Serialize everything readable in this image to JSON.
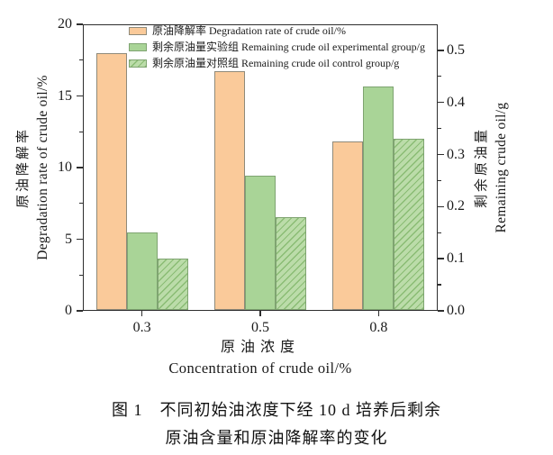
{
  "figure": {
    "caption": {
      "line1": "图 1　不同初始油浓度下经 10 d 培养后剩余",
      "line2": "原油含量和原油降解率的变化"
    }
  },
  "chart_data": {
    "type": "bar",
    "categories": [
      "0.3",
      "0.5",
      "0.8"
    ],
    "series": [
      {
        "key": "degradation-rate",
        "name": "原油降解率 Degradation rate of crude oil/%",
        "axis": "left",
        "style": "orange",
        "values": [
          18.0,
          16.7,
          11.8
        ]
      },
      {
        "key": "remaining-experimental",
        "name": "剩余原油量实验组 Remaining crude oil experimental group/g",
        "axis": "right",
        "style": "green",
        "values": [
          0.15,
          0.26,
          0.43
        ]
      },
      {
        "key": "remaining-control",
        "name": "剩余原油量对照组 Remaining crude oil control group/g",
        "axis": "right",
        "style": "hatch",
        "values": [
          0.1,
          0.18,
          0.33
        ]
      }
    ],
    "x_axis": {
      "label_zh": "原油浓度",
      "label_en": "Concentration of crude oil/%",
      "tick_labels": [
        "0.3",
        "0.5",
        "0.8"
      ]
    },
    "left_axis": {
      "label_zh": "原油降解率",
      "label_en": "Degradation rate of crude oil/%",
      "min": 0,
      "max": 20,
      "major_ticks": [
        0,
        5,
        10,
        15,
        20
      ],
      "minor_step": 2.5
    },
    "right_axis": {
      "label_zh": "剩余原油量",
      "label_en": "Remaining crude oil/g",
      "min": 0,
      "max": 0.55,
      "major_ticks": [
        0.0,
        0.1,
        0.2,
        0.3,
        0.4,
        0.5
      ],
      "minor_step": 0.05,
      "tick_decimals": 1
    },
    "legend_position": "top-left-inside",
    "grid": false,
    "colors": {
      "degradation_fill": "#FACA9A",
      "degradation_border": "#8F8A7A",
      "experimental_fill": "#A9D497",
      "experimental_border": "#7FA471",
      "control_fill": "#BBDCA9",
      "control_hatch_line": "#8ABC74",
      "axis": "#2E2E2E",
      "text": "#1A1A1A"
    }
  }
}
